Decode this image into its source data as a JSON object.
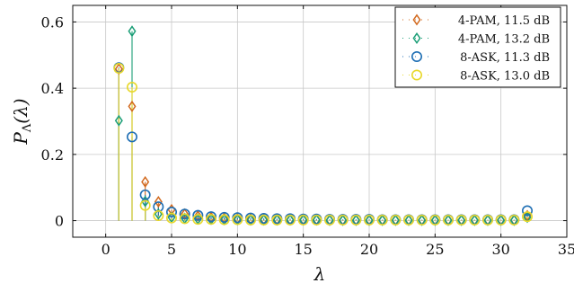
{
  "chart_data": {
    "type": "scatter",
    "subtype": "stem",
    "title": "",
    "xlabel": "λ",
    "ylabel": "P_Λ(λ)",
    "ylabel_parts": {
      "main": "P",
      "sub": "Λ",
      "arg": "(λ)"
    },
    "xlim": [
      -2.5,
      35
    ],
    "ylim": [
      -0.05,
      0.65
    ],
    "xticks": [
      0,
      5,
      10,
      15,
      20,
      25,
      30,
      35
    ],
    "yticks": [
      0,
      0.2,
      0.4,
      0.6
    ],
    "xtick_labels": [
      "0",
      "5",
      "10",
      "15",
      "20",
      "25",
      "30",
      "35"
    ],
    "ytick_labels": [
      "0",
      "0.2",
      "0.4",
      "0.6"
    ],
    "grid": true,
    "legend_position": "top-right",
    "series": [
      {
        "name": "4-PAM, 11.5 dB",
        "label_main": "4-PAM,",
        "label_db": "11.5 dB",
        "marker": "diamond",
        "color": "#D2691E",
        "x": [
          1,
          2,
          3,
          4,
          5,
          6,
          7,
          8,
          9,
          10,
          11,
          12,
          13,
          14,
          15,
          16,
          17,
          18,
          19,
          20,
          21,
          22,
          23,
          24,
          25,
          26,
          27,
          28,
          29,
          30,
          31,
          32
        ],
        "y": [
          0.458,
          0.345,
          0.117,
          0.057,
          0.033,
          0.02,
          0.014,
          0.01,
          0.008,
          0.006,
          0.005,
          0.004,
          0.004,
          0.003,
          0.003,
          0.003,
          0.002,
          0.002,
          0.002,
          0.002,
          0.002,
          0.002,
          0.002,
          0.002,
          0.002,
          0.002,
          0.002,
          0.002,
          0.002,
          0.002,
          0.002,
          0.015
        ]
      },
      {
        "name": "4-PAM, 13.2 dB",
        "label_main": "4-PAM,",
        "label_db": "13.2 dB",
        "marker": "diamond",
        "color": "#1B9E77",
        "x": [
          1,
          2,
          3,
          4,
          5,
          6,
          7,
          8,
          9,
          10,
          11,
          12,
          13,
          14,
          15,
          16,
          17,
          18,
          19,
          20,
          21,
          22,
          23,
          24,
          25,
          26,
          27,
          28,
          29,
          30,
          31,
          32
        ],
        "y": [
          0.302,
          0.572,
          0.058,
          0.02,
          0.01,
          0.007,
          0.005,
          0.004,
          0.003,
          0.003,
          0.002,
          0.002,
          0.002,
          0.002,
          0.002,
          0.002,
          0.001,
          0.001,
          0.001,
          0.001,
          0.001,
          0.001,
          0.001,
          0.001,
          0.001,
          0.001,
          0.001,
          0.001,
          0.001,
          0.001,
          0.001,
          0.01
        ]
      },
      {
        "name": "8-ASK, 11.3 dB",
        "label_main": "8-ASK,",
        "label_db": "11.3 dB",
        "marker": "circle",
        "color": "#1F6FB4",
        "x": [
          1,
          2,
          3,
          4,
          5,
          6,
          7,
          8,
          9,
          10,
          11,
          12,
          13,
          14,
          15,
          16,
          17,
          18,
          19,
          20,
          21,
          22,
          23,
          24,
          25,
          26,
          27,
          28,
          29,
          30,
          31,
          32
        ],
        "y": [
          0.462,
          0.253,
          0.078,
          0.042,
          0.026,
          0.02,
          0.016,
          0.012,
          0.01,
          0.009,
          0.008,
          0.007,
          0.006,
          0.006,
          0.005,
          0.005,
          0.004,
          0.004,
          0.004,
          0.004,
          0.003,
          0.003,
          0.003,
          0.003,
          0.003,
          0.003,
          0.003,
          0.003,
          0.003,
          0.003,
          0.003,
          0.03
        ]
      },
      {
        "name": "8-ASK, 13.0 dB",
        "label_main": "8-ASK,",
        "label_db": "13.0 dB",
        "marker": "circle",
        "color": "#E8D82A",
        "x": [
          1,
          2,
          3,
          4,
          5,
          6,
          7,
          8,
          9,
          10,
          11,
          12,
          13,
          14,
          15,
          16,
          17,
          18,
          19,
          20,
          21,
          22,
          23,
          24,
          25,
          26,
          27,
          28,
          29,
          30,
          31,
          32
        ],
        "y": [
          0.46,
          0.403,
          0.046,
          0.015,
          0.008,
          0.006,
          0.004,
          0.004,
          0.003,
          0.003,
          0.002,
          0.002,
          0.002,
          0.002,
          0.002,
          0.002,
          0.002,
          0.002,
          0.002,
          0.002,
          0.002,
          0.002,
          0.002,
          0.002,
          0.002,
          0.002,
          0.002,
          0.002,
          0.002,
          0.002,
          0.002,
          0.012
        ]
      }
    ]
  }
}
